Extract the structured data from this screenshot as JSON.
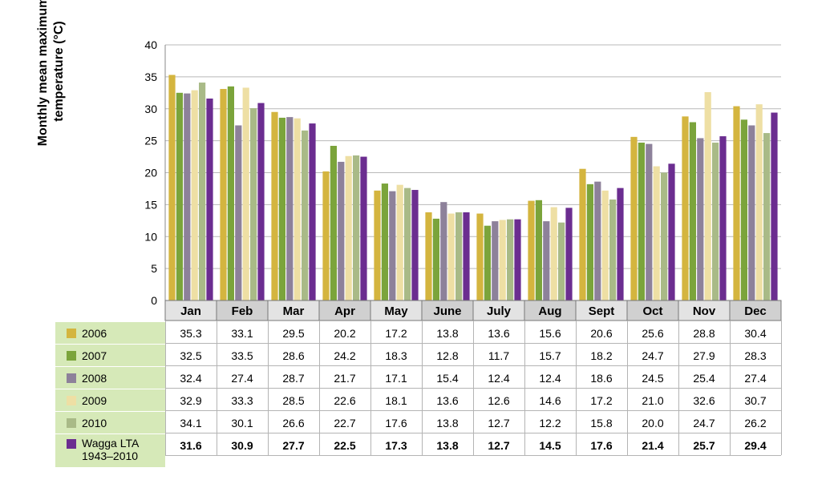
{
  "chart_data": {
    "type": "bar",
    "ylabel": "Monthly mean maximum temperature (°C)",
    "ylim": [
      0,
      40
    ],
    "yticks": [
      0,
      5,
      10,
      15,
      20,
      25,
      30,
      35,
      40
    ],
    "grid": true,
    "categories": [
      "Jan",
      "Feb",
      "Mar",
      "Apr",
      "May",
      "June",
      "July",
      "Aug",
      "Sept",
      "Oct",
      "Nov",
      "Dec"
    ],
    "series": [
      {
        "name": "2006",
        "color": "#d4b53f",
        "bold": false,
        "values": [
          35.3,
          33.1,
          29.5,
          20.2,
          17.2,
          13.8,
          13.6,
          15.6,
          20.6,
          25.6,
          28.8,
          30.4
        ]
      },
      {
        "name": "2007",
        "color": "#7ba43b",
        "bold": false,
        "values": [
          32.5,
          33.5,
          28.6,
          24.2,
          18.3,
          12.8,
          11.7,
          15.7,
          18.2,
          24.7,
          27.9,
          28.3
        ]
      },
      {
        "name": "2008",
        "color": "#8d819a",
        "bold": false,
        "values": [
          32.4,
          27.4,
          28.7,
          21.7,
          17.1,
          15.4,
          12.4,
          12.4,
          18.6,
          24.5,
          25.4,
          27.4
        ]
      },
      {
        "name": "2009",
        "color": "#eedfa4",
        "bold": false,
        "values": [
          32.9,
          33.3,
          28.5,
          22.6,
          18.1,
          13.6,
          12.6,
          14.6,
          17.2,
          21.0,
          32.6,
          30.7
        ]
      },
      {
        "name": "2010",
        "color": "#a9ba87",
        "bold": false,
        "values": [
          34.1,
          30.1,
          26.6,
          22.7,
          17.6,
          13.8,
          12.7,
          12.2,
          15.8,
          20.0,
          24.7,
          26.2
        ]
      },
      {
        "name": "Wagga LTA",
        "name_line2": "1943–2010",
        "color": "#6b2d90",
        "bold": true,
        "values": [
          31.6,
          30.9,
          27.7,
          22.5,
          17.3,
          13.8,
          12.7,
          14.5,
          17.6,
          21.4,
          25.7,
          29.4
        ]
      }
    ]
  }
}
